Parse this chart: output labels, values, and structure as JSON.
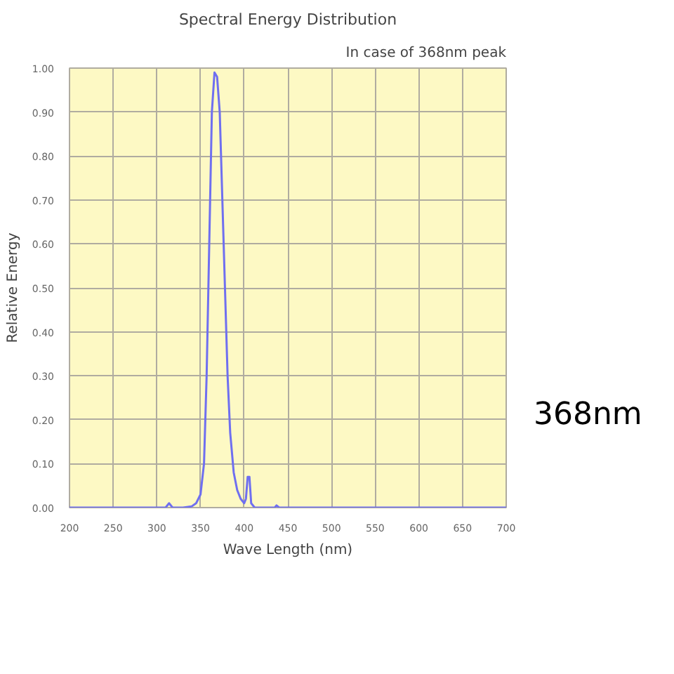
{
  "chart_data": {
    "type": "line",
    "title": "Spectral Energy Distribution",
    "subtitle": "In case of 368nm peak",
    "xlabel": "Wave Length (nm)",
    "ylabel": "Relative Energy",
    "x": [
      200,
      310,
      314,
      318,
      330,
      340,
      345,
      350,
      354,
      357,
      360,
      363,
      366,
      369,
      372,
      375,
      378,
      381,
      384,
      388,
      392,
      396,
      400,
      402,
      404,
      406,
      408,
      412,
      435,
      437,
      440,
      700
    ],
    "series": [
      {
        "color": "#6f6ff0",
        "values": [
          0,
          0,
          0.01,
          0,
          0,
          0.003,
          0.01,
          0.03,
          0.1,
          0.3,
          0.6,
          0.9,
          0.99,
          0.98,
          0.9,
          0.7,
          0.5,
          0.3,
          0.17,
          0.08,
          0.04,
          0.02,
          0.01,
          0.02,
          0.07,
          0.07,
          0.01,
          0,
          0,
          0.005,
          0,
          0
        ]
      }
    ],
    "xlim": [
      200,
      700
    ],
    "xticks": [
      200,
      250,
      300,
      350,
      400,
      450,
      500,
      550,
      600,
      650,
      700
    ],
    "ylim": [
      0,
      1
    ],
    "yticks": [
      {
        "value": 0,
        "label": "0.00"
      },
      {
        "value": 0.1,
        "label": "0.10"
      },
      {
        "value": 0.2,
        "label": "0.20"
      },
      {
        "value": 0.3,
        "label": "0.30"
      },
      {
        "value": 0.4,
        "label": "0.40"
      },
      {
        "value": 0.5,
        "label": "0.50"
      },
      {
        "value": 0.6,
        "label": "0.60"
      },
      {
        "value": 0.7,
        "label": "0.70"
      },
      {
        "value": 0.8,
        "label": "0.80"
      },
      {
        "value": 0.9,
        "label": "0.90"
      },
      {
        "value": 1,
        "label": "1.00"
      }
    ],
    "grid": true,
    "annotations": [
      "368nm"
    ]
  }
}
